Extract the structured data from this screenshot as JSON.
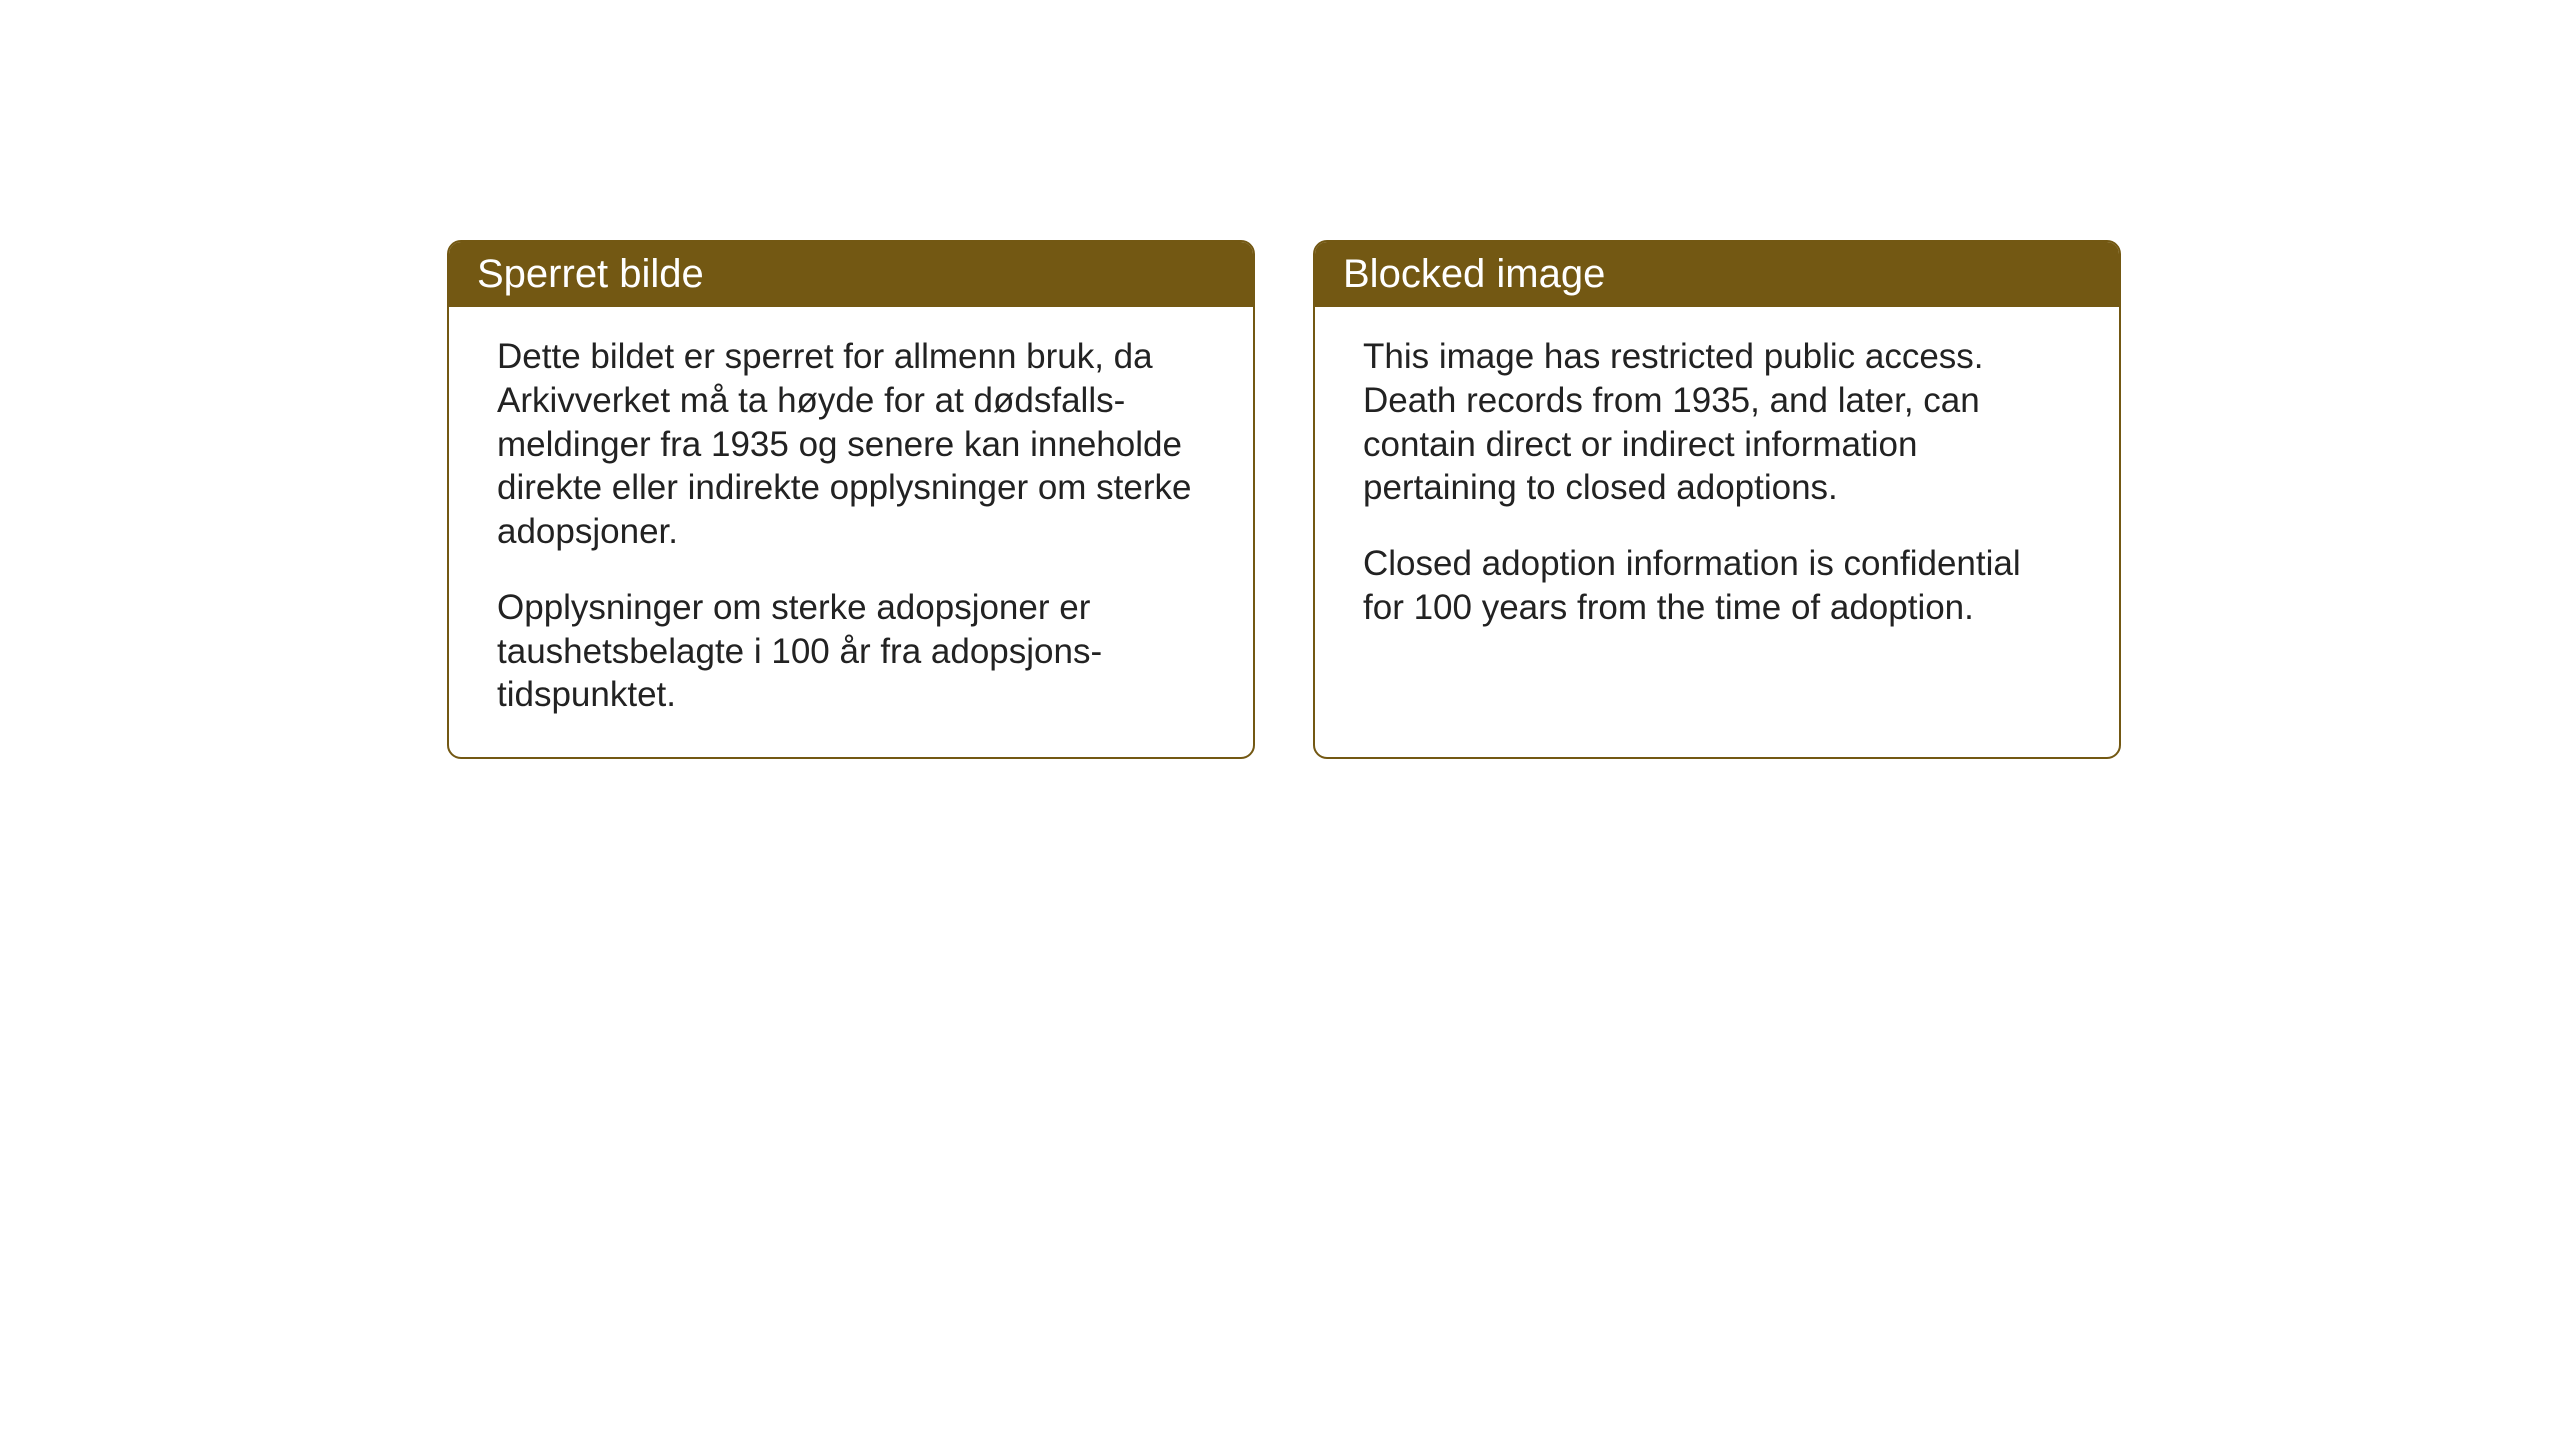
{
  "cards": {
    "norwegian": {
      "title": "Sperret bilde",
      "paragraph1": "Dette bildet er sperret for allmenn bruk, da Arkivverket må ta høyde for at dødsfalls-meldinger fra 1935 og senere kan inneholde direkte eller indirekte opplysninger om sterke adopsjoner.",
      "paragraph2": "Opplysninger om sterke adopsjoner er taushetsbelagte i 100 år fra adopsjons-tidspunktet."
    },
    "english": {
      "title": "Blocked image",
      "paragraph1": "This image has restricted public access. Death records from 1935, and later, can contain direct or indirect information pertaining to closed adoptions.",
      "paragraph2": "Closed adoption information is confidential for 100 years from the time of adoption."
    }
  },
  "styles": {
    "header_background": "#735813",
    "header_text_color": "#ffffff",
    "border_color": "#735813",
    "body_text_color": "#222222",
    "page_background": "#ffffff",
    "title_fontsize": 40,
    "body_fontsize": 35,
    "border_radius": 14,
    "border_width": 2
  }
}
